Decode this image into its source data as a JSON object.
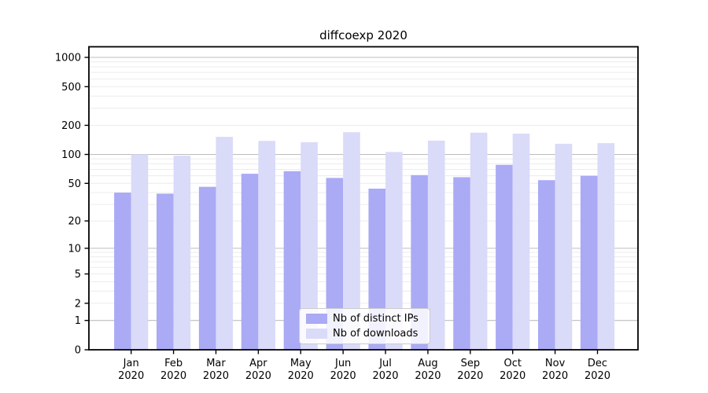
{
  "title": "diffcoexp 2020",
  "legend": {
    "items": [
      {
        "label": "Nb of distinct IPs",
        "color": "#aaaaf5"
      },
      {
        "label": "Nb of downloads",
        "color": "#dadaf9"
      }
    ]
  },
  "chart_data": {
    "type": "bar",
    "title": "diffcoexp 2020",
    "categories": [
      "Jan",
      "Feb",
      "Mar",
      "Apr",
      "May",
      "Jun",
      "Jul",
      "Aug",
      "Sep",
      "Oct",
      "Nov",
      "Dec"
    ],
    "category_year": "2020",
    "series": [
      {
        "name": "Nb of distinct IPs",
        "color": "#aaaaf5",
        "values": [
          40,
          39,
          46,
          63,
          67,
          57,
          44,
          61,
          58,
          78,
          54,
          60
        ]
      },
      {
        "name": "Nb of downloads",
        "color": "#dadaf9",
        "values": [
          100,
          97,
          152,
          138,
          134,
          170,
          106,
          139,
          168,
          164,
          129,
          131
        ]
      }
    ],
    "yticks": [
      0,
      1,
      2,
      5,
      10,
      20,
      50,
      100,
      200,
      500,
      1000
    ],
    "minor_grid_values": [
      2,
      3,
      4,
      5,
      6,
      7,
      8,
      9,
      20,
      30,
      40,
      50,
      60,
      70,
      80,
      90,
      200,
      300,
      400,
      500,
      600,
      700,
      800,
      900
    ],
    "major_grid_values": [
      1,
      10,
      100,
      1000
    ],
    "scale": "log10(value+1)",
    "ylim": [
      0,
      1001
    ],
    "grid": true,
    "legend_position": "bottom-center",
    "colors": {
      "axis": "#000000",
      "tick_label": "#000000",
      "grid_major": "#bdbdbd",
      "grid_minor": "#ececec",
      "legend_border": "#cccccc",
      "background": "#ffffff"
    }
  }
}
